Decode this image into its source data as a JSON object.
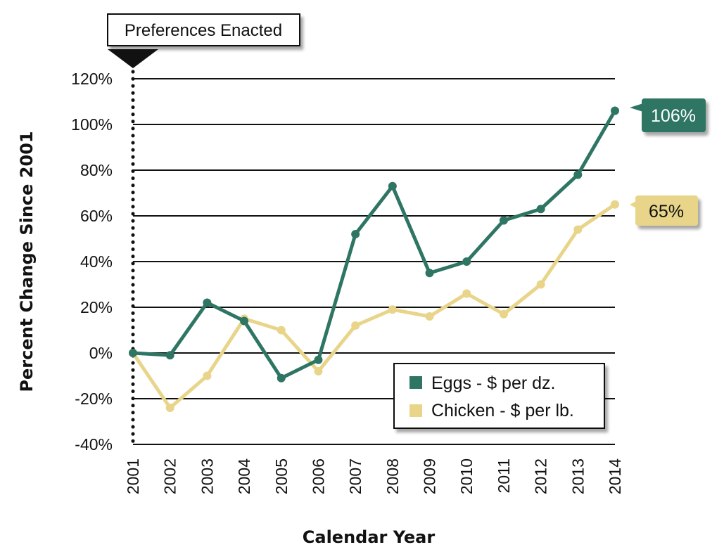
{
  "chart_data": {
    "type": "line",
    "xlabel": "Calendar Year",
    "ylabel": "Percent Change Since 2001",
    "ylim": [
      -40,
      120
    ],
    "y_ticks": [
      120,
      100,
      80,
      60,
      40,
      20,
      0,
      -20,
      -40
    ],
    "y_tick_labels": [
      "120%",
      "100%",
      "80%",
      "60%",
      "40%",
      "20%",
      "0%",
      "-20%",
      "-40%"
    ],
    "x": [
      "2001",
      "2002",
      "2003",
      "2004",
      "2005",
      "2006",
      "2007",
      "2008",
      "2009",
      "2010",
      "2011",
      "2012",
      "2013",
      "2014"
    ],
    "grid": "horizontal",
    "legend_position": "bottom-right",
    "series": [
      {
        "name": "Eggs - $ per dz.",
        "color": "#2e7564",
        "values": [
          0,
          -1,
          22,
          14,
          -11,
          -3,
          52,
          73,
          35,
          40,
          58,
          63,
          78,
          106
        ]
      },
      {
        "name": "Chicken - $ per lb.",
        "color": "#e8d58a",
        "values": [
          0,
          -24,
          -10,
          15,
          10,
          -8,
          12,
          19,
          16,
          26,
          17,
          30,
          54,
          65
        ]
      }
    ],
    "annotations": {
      "marker_label": "Preferences Enacted",
      "marker_year": "2001",
      "end_labels": [
        "106%",
        "65%"
      ]
    }
  }
}
